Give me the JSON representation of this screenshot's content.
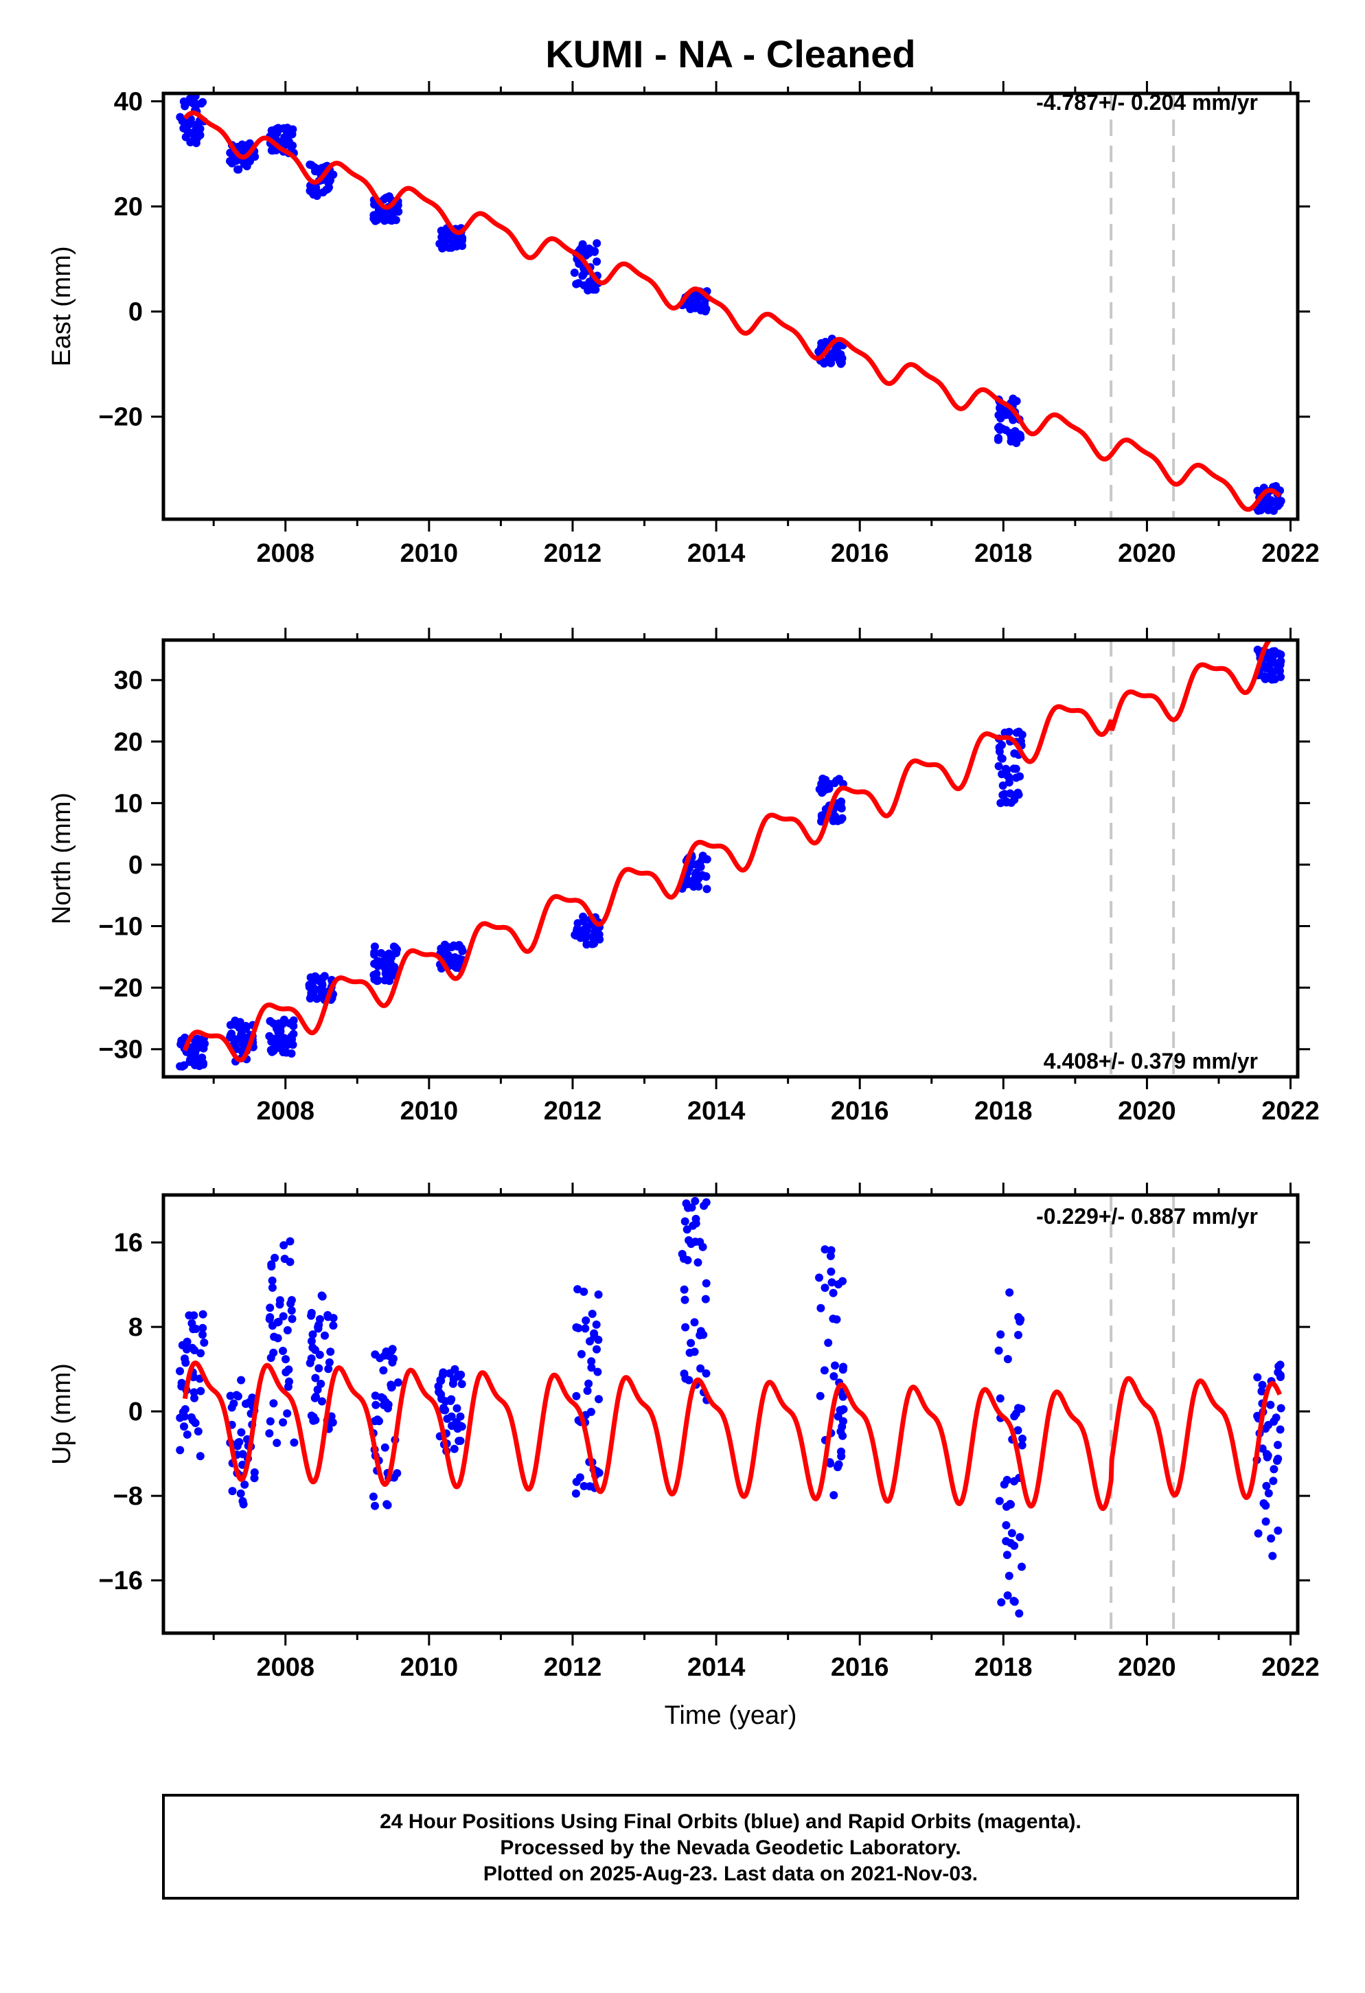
{
  "title": "KUMI  - NA - Cleaned",
  "xlabel": "Time (year)",
  "footer": [
    "24 Hour Positions Using Final Orbits (blue) and Rapid Orbits (magenta).",
    "Processed by the Nevada Geodetic Laboratory.",
    "Plotted on 2025-Aug-23. Last data on 2021-Nov-03."
  ],
  "colors": {
    "data": "#0000ff",
    "model": "#ff0000",
    "event": "#c8c8c8",
    "frame": "#000000"
  },
  "chart_data": [
    {
      "type": "scatter",
      "ylabel": "East (mm)",
      "rate": "-4.787+/- 0.204 mm/yr",
      "xlim": [
        2006.3,
        2022.1
      ],
      "ylim": [
        -39.5,
        41.5
      ],
      "xticks": [
        2008,
        2010,
        2012,
        2014,
        2016,
        2018,
        2020,
        2022
      ],
      "yticks": [
        -20,
        0,
        20,
        40
      ],
      "event_lines": [
        2019.5,
        2020.37
      ],
      "model": {
        "offset": 36.2,
        "slope": -4.787,
        "annual": 2.3,
        "t0": 2006.6,
        "steps": [
          {
            "t": 2019.5,
            "dy": 0
          },
          {
            "t": 2020.37,
            "dy": 0
          }
        ]
      },
      "series": [
        {
          "cluster_center": 2006.7,
          "values_range": [
            32,
            41
          ]
        },
        {
          "cluster_center": 2007.4,
          "values_range": [
            27,
            32
          ]
        },
        {
          "cluster_center": 2007.95,
          "values_range": [
            30,
            35
          ]
        },
        {
          "cluster_center": 2008.5,
          "values_range": [
            22,
            28
          ]
        },
        {
          "cluster_center": 2009.4,
          "values_range": [
            17,
            22
          ]
        },
        {
          "cluster_center": 2010.3,
          "values_range": [
            12,
            16
          ]
        },
        {
          "cluster_center": 2012.2,
          "values_range": [
            4,
            13
          ]
        },
        {
          "cluster_center": 2013.7,
          "values_range": [
            0,
            4
          ]
        },
        {
          "cluster_center": 2015.6,
          "values_range": [
            -10,
            -5
          ]
        },
        {
          "cluster_center": 2018.1,
          "values_range": [
            -25,
            -16
          ]
        },
        {
          "cluster_center": 2021.7,
          "values_range": [
            -38,
            -33
          ]
        }
      ]
    },
    {
      "type": "scatter",
      "ylabel": "North (mm)",
      "rate": "4.408+/- 0.379 mm/yr",
      "xlim": [
        2006.3,
        2022.1
      ],
      "ylim": [
        -34.5,
        36.5
      ],
      "xticks": [
        2008,
        2010,
        2012,
        2014,
        2016,
        2018,
        2020,
        2022
      ],
      "yticks": [
        -30,
        -20,
        -10,
        0,
        10,
        20,
        30
      ],
      "event_lines": [
        2019.5,
        2020.37
      ],
      "model": {
        "offset": -31.0,
        "slope": 4.408,
        "annual": 3.2,
        "t0": 2006.6,
        "steps": [
          {
            "t": 2019.5,
            "dy": -2
          },
          {
            "t": 2020.37,
            "dy": 0
          }
        ]
      },
      "series": [
        {
          "cluster_center": 2006.7,
          "values_range": [
            -33,
            -28
          ]
        },
        {
          "cluster_center": 2007.4,
          "values_range": [
            -32,
            -25
          ]
        },
        {
          "cluster_center": 2007.95,
          "values_range": [
            -31,
            -25
          ]
        },
        {
          "cluster_center": 2008.5,
          "values_range": [
            -22,
            -18
          ]
        },
        {
          "cluster_center": 2009.4,
          "values_range": [
            -19,
            -13
          ]
        },
        {
          "cluster_center": 2010.3,
          "values_range": [
            -17,
            -13
          ]
        },
        {
          "cluster_center": 2012.2,
          "values_range": [
            -13,
            -8
          ]
        },
        {
          "cluster_center": 2013.7,
          "values_range": [
            -4,
            2
          ]
        },
        {
          "cluster_center": 2015.6,
          "values_range": [
            7,
            14
          ]
        },
        {
          "cluster_center": 2018.1,
          "values_range": [
            10,
            22
          ]
        },
        {
          "cluster_center": 2021.7,
          "values_range": [
            30,
            35
          ]
        }
      ]
    },
    {
      "type": "scatter",
      "ylabel": "Up (mm)",
      "rate": "-0.229+/- 0.887 mm/yr",
      "xlim": [
        2006.3,
        2022.1
      ],
      "ylim": [
        -21,
        20.5
      ],
      "xticks": [
        2008,
        2010,
        2012,
        2014,
        2016,
        2018,
        2020,
        2022
      ],
      "yticks": [
        -16,
        -8,
        0,
        8,
        16
      ],
      "event_lines": [
        2019.5,
        2020.37
      ],
      "model": {
        "offset": 0,
        "slope": -0.229,
        "annual": 4.8,
        "t0": 2006.6,
        "steps": [
          {
            "t": 2019.5,
            "dy": 1.5
          },
          {
            "t": 2020.37,
            "dy": 0
          }
        ]
      },
      "series": [
        {
          "cluster_center": 2006.7,
          "values_range": [
            -5,
            10
          ]
        },
        {
          "cluster_center": 2007.4,
          "values_range": [
            -9,
            3
          ]
        },
        {
          "cluster_center": 2007.95,
          "values_range": [
            -5,
            17
          ]
        },
        {
          "cluster_center": 2008.5,
          "values_range": [
            -2,
            11
          ]
        },
        {
          "cluster_center": 2009.4,
          "values_range": [
            -9,
            6
          ]
        },
        {
          "cluster_center": 2010.3,
          "values_range": [
            -4,
            4
          ]
        },
        {
          "cluster_center": 2012.2,
          "values_range": [
            -8,
            12
          ]
        },
        {
          "cluster_center": 2013.7,
          "values_range": [
            1,
            20
          ]
        },
        {
          "cluster_center": 2015.6,
          "values_range": [
            -8,
            16
          ]
        },
        {
          "cluster_center": 2018.1,
          "values_range": [
            -21,
            12
          ]
        },
        {
          "cluster_center": 2021.7,
          "values_range": [
            -14,
            5
          ]
        }
      ]
    }
  ]
}
